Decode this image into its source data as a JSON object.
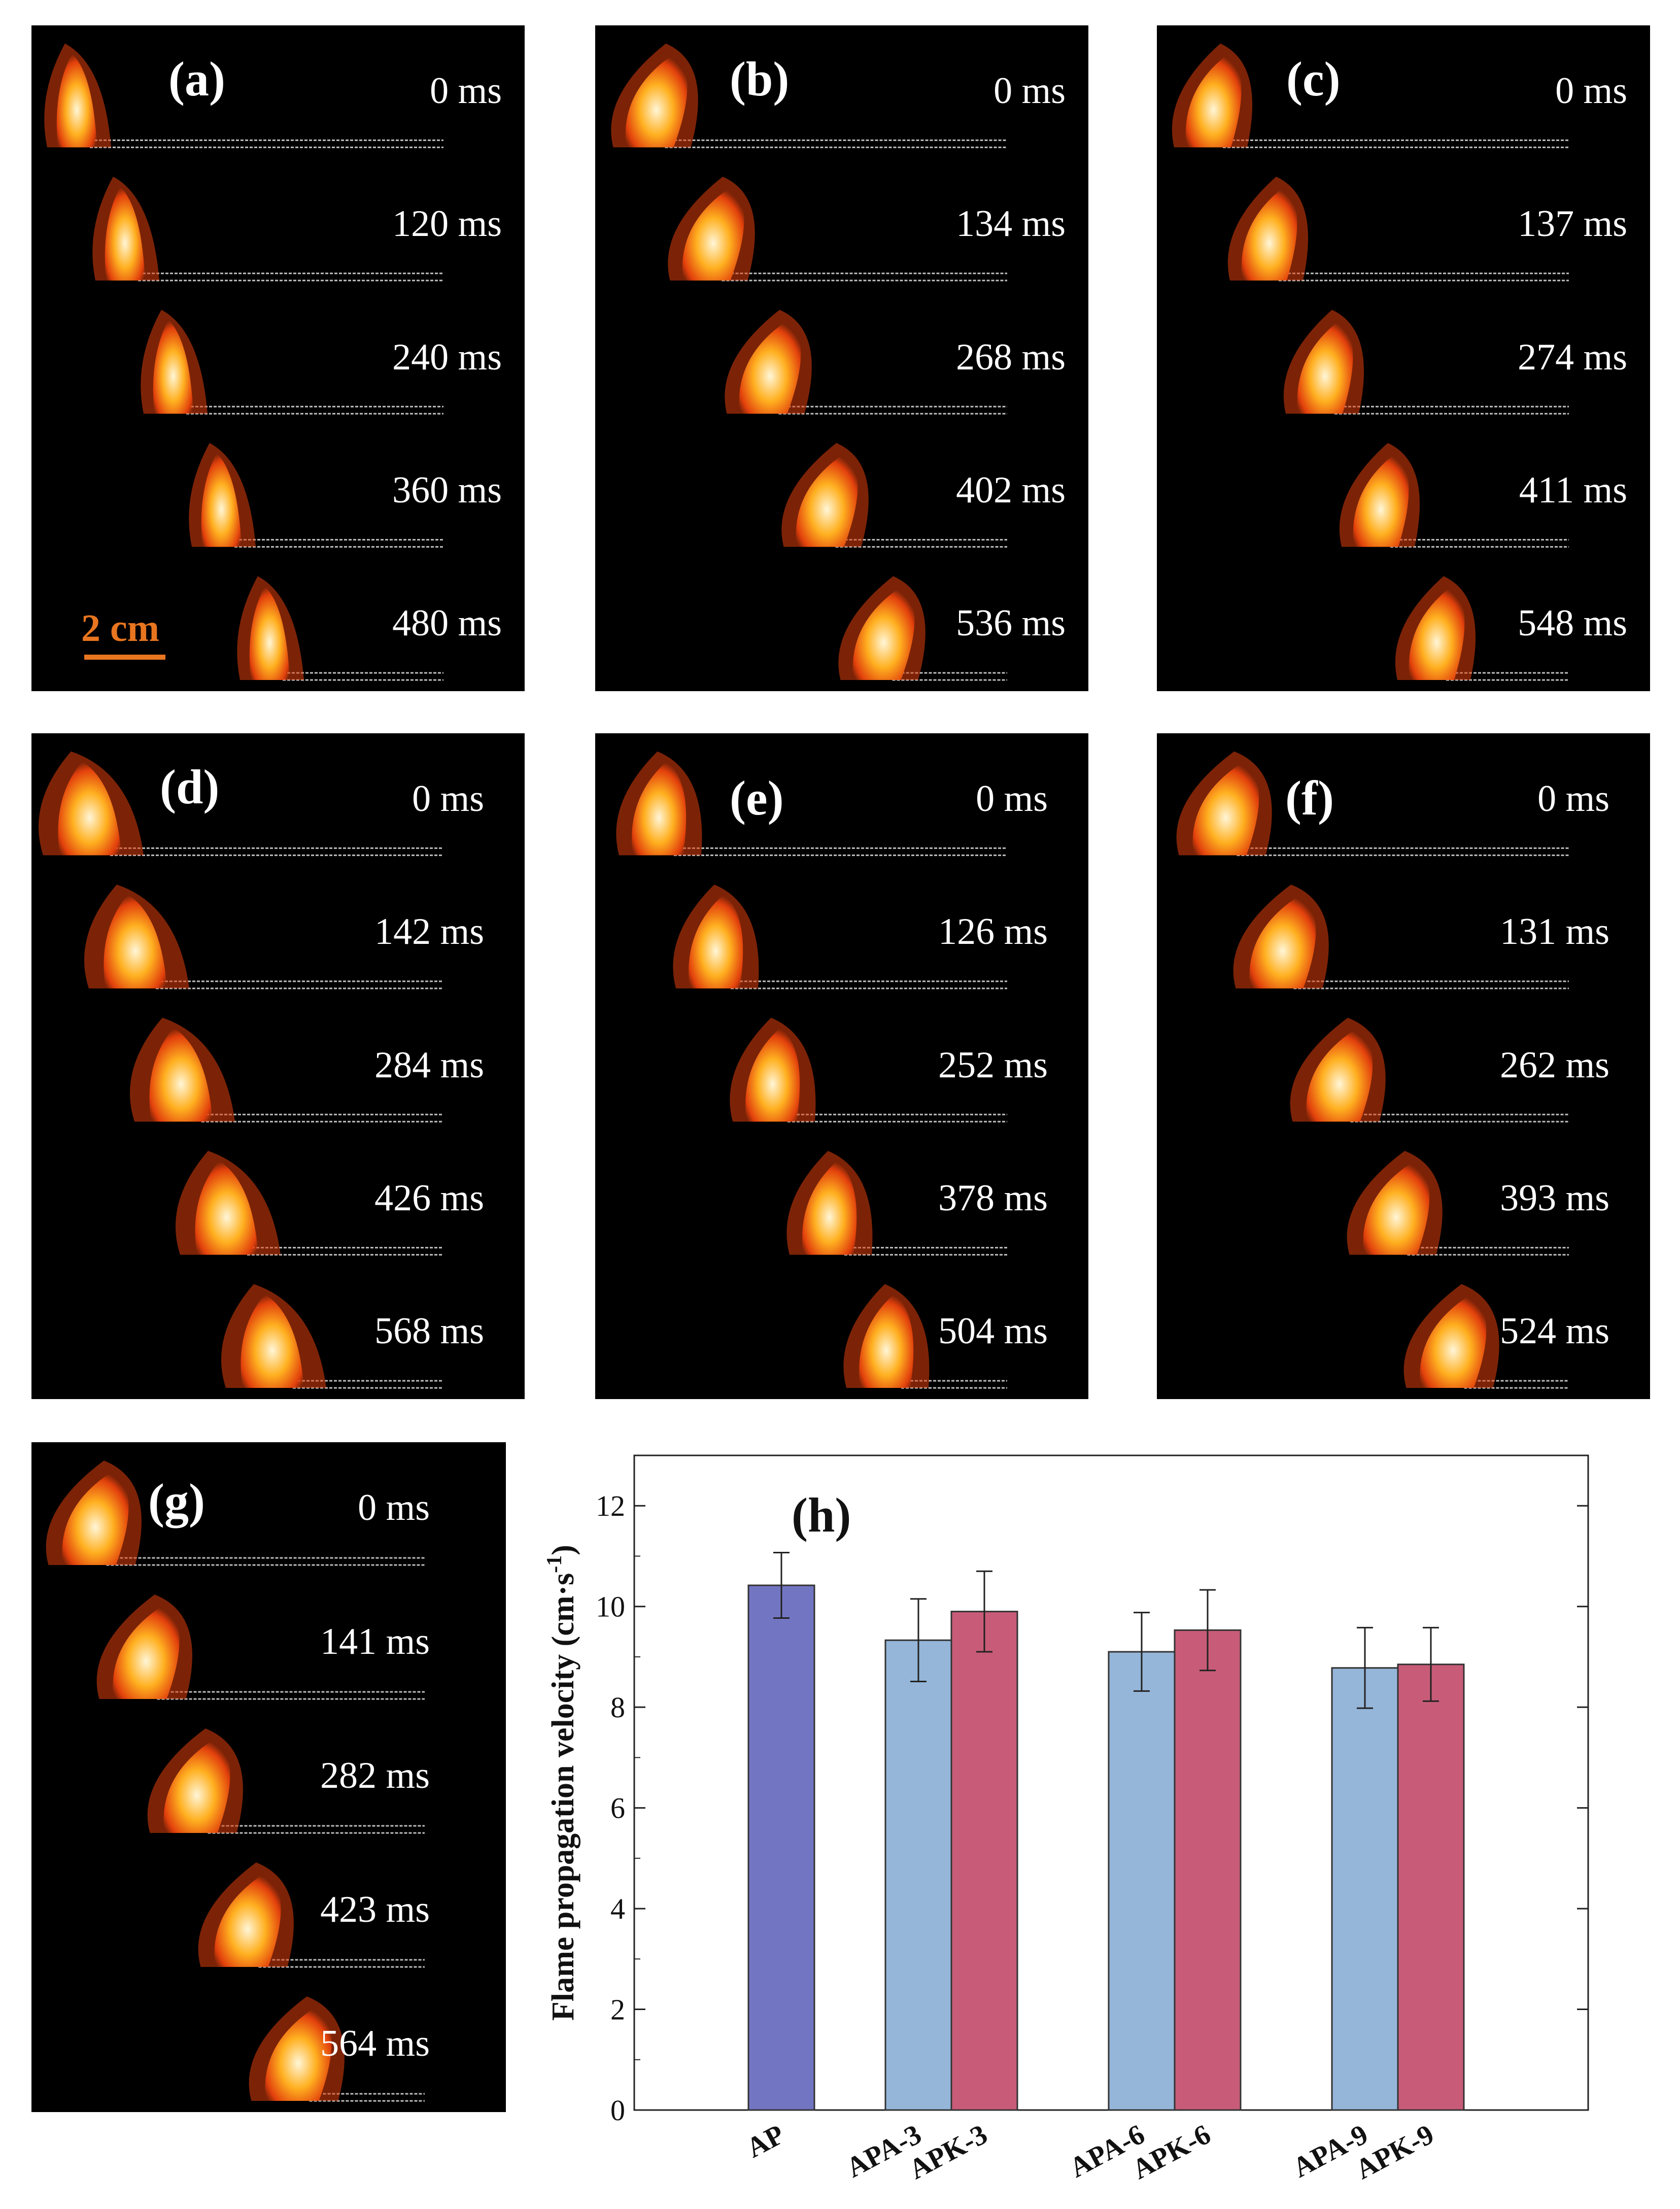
{
  "panels": [
    {
      "letter": "(a)",
      "times": [
        "0 ms",
        "120 ms",
        "240 ms",
        "360 ms",
        "480 ms"
      ]
    },
    {
      "letter": "(b)",
      "times": [
        "0 ms",
        "134 ms",
        "268 ms",
        "402 ms",
        "536 ms"
      ]
    },
    {
      "letter": "(c)",
      "times": [
        "0 ms",
        "137 ms",
        "274 ms",
        "411 ms",
        "548 ms"
      ]
    },
    {
      "letter": "(d)",
      "times": [
        "0 ms",
        "142 ms",
        "284 ms",
        "426 ms",
        "568 ms"
      ]
    },
    {
      "letter": "(e)",
      "times": [
        "0 ms",
        "126 ms",
        "252 ms",
        "378 ms",
        "504 ms"
      ]
    },
    {
      "letter": "(f)",
      "times": [
        "0 ms",
        "131 ms",
        "262 ms",
        "393 ms",
        "524 ms"
      ]
    },
    {
      "letter": "(g)",
      "times": [
        "0 ms",
        "141 ms",
        "282 ms",
        "423 ms",
        "564 ms"
      ]
    }
  ],
  "scale_bar": {
    "label": "2 cm",
    "color": "#e8751f"
  },
  "colors": {
    "AP": "#7276c2",
    "APA": "#95b6d9",
    "APK": "#c85c78",
    "flame_core": "#fff6d8",
    "flame_mid": "#ffb020",
    "flame_outer": "#e2400c"
  },
  "chart_data": {
    "type": "bar",
    "panel_letter": "(h)",
    "categories": [
      "AP",
      "APA-3",
      "APK-3",
      "APA-6",
      "APK-6",
      "APA-9",
      "APK-9"
    ],
    "values": [
      10.42,
      9.33,
      9.9,
      9.1,
      9.53,
      8.78,
      8.85
    ],
    "errors": [
      0.65,
      0.82,
      0.8,
      0.78,
      0.8,
      0.8,
      0.73
    ],
    "ylabel": "Flame propagation velocity (cm·s",
    "ylabel_sup": "-1",
    "ylabel_close": ")",
    "ylim": [
      0,
      13
    ],
    "yticks": [
      0,
      2,
      4,
      6,
      8,
      10,
      12
    ],
    "grid": false,
    "legend": "none"
  }
}
